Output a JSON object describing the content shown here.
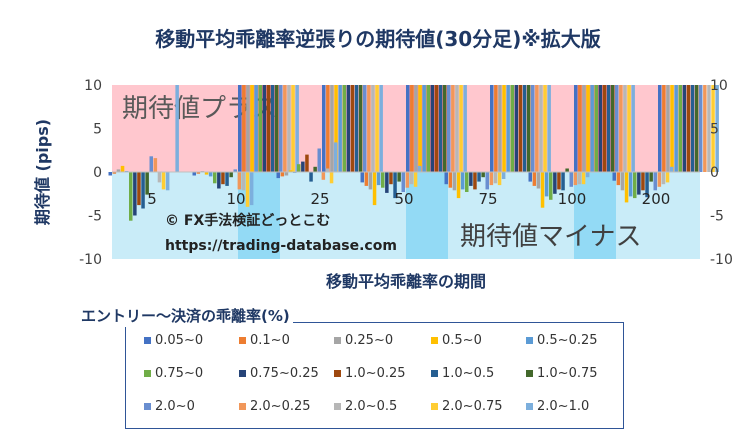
{
  "chart_data": {
    "type": "bar",
    "title": "移動平均乖離率逆張りの期待値(30分足)※拡大版",
    "xlabel": "移動平均乖離率の期間",
    "ylabel": "期待値 (pips)",
    "ylim": [
      -10,
      10
    ],
    "yticks": [
      10,
      5,
      0,
      -5,
      -10
    ],
    "categories": [
      "5",
      "10",
      "25",
      "50",
      "75",
      "100",
      "200"
    ],
    "legend_title": "エントリー～決済の乖離率(%)",
    "colors": [
      "#4472c4",
      "#ed7d31",
      "#a5a5a5",
      "#ffc000",
      "#5b9bd5",
      "#70ad47",
      "#264478",
      "#9e480e",
      "#255e91",
      "#43682b",
      "#698ed0",
      "#f1975a",
      "#b7b7b7",
      "#ffcd33",
      "#7cafdd"
    ],
    "series": [
      {
        "name": "0.05~0",
        "values": [
          -0.4,
          -0.4,
          -0.7,
          -1.2,
          -1.4,
          -1.1,
          -1.0
        ]
      },
      {
        "name": "0.1~0",
        "values": [
          -0.2,
          -0.2,
          -0.5,
          -1.6,
          -1.8,
          -1.6,
          -1.5
        ]
      },
      {
        "name": "0.25~0",
        "values": [
          0.3,
          0.1,
          -0.4,
          -2.0,
          -2.1,
          -1.9,
          -2.1
        ]
      },
      {
        "name": "0.5~0",
        "values": [
          0.7,
          -0.3,
          0.2,
          -3.8,
          -3.0,
          -4.1,
          -3.5
        ]
      },
      {
        "name": "0.5~0.25",
        "values": [
          0.1,
          -0.5,
          -0.1,
          -1.5,
          -2.0,
          -2.8,
          -2.8
        ]
      },
      {
        "name": "0.75~0",
        "values": [
          -5.6,
          -1.3,
          0.9,
          -1.8,
          -2.3,
          -3.2,
          -3.0
        ]
      },
      {
        "name": "0.75~0.25",
        "values": [
          -5.0,
          -1.9,
          1.2,
          -2.4,
          -1.6,
          -2.5,
          -2.6
        ]
      },
      {
        "name": "1.0~0.25",
        "values": [
          -3.8,
          -1.4,
          2.0,
          -1.4,
          -2.0,
          -2.0,
          -2.1
        ]
      },
      {
        "name": "1.0~0.5",
        "values": [
          -4.2,
          -1.6,
          -1.1,
          -3.0,
          -1.1,
          -2.1,
          -2.9
        ]
      },
      {
        "name": "1.0~0.75",
        "values": [
          -2.6,
          -0.6,
          0.6,
          -1.1,
          -0.6,
          0.4,
          -1.1
        ]
      },
      {
        "name": "2.0~0",
        "values": [
          1.8,
          0.3,
          2.7,
          -2.3,
          -2.0,
          -1.7,
          -2.1
        ]
      },
      {
        "name": "2.0~0.25",
        "values": [
          1.6,
          -2.0,
          -0.9,
          -1.8,
          -1.5,
          -1.5,
          -1.7
        ]
      },
      {
        "name": "2.0~0.5",
        "values": [
          -1.2,
          -2.1,
          0.4,
          -1.4,
          -1.3,
          -1.4,
          -1.4
        ]
      },
      {
        "name": "2.0~0.75",
        "values": [
          -2.0,
          -4.0,
          -1.3,
          -1.7,
          -1.5,
          -1.4,
          -1.2
        ]
      },
      {
        "name": "2.0~1.0",
        "values": [
          -2.1,
          -3.8,
          3.4,
          0.7,
          -0.8,
          -0.6,
          0.6
        ]
      }
    ],
    "overflow_series": [
      {
        "category": "5",
        "colors": [
          "#7cafdd"
        ]
      },
      {
        "category": "10",
        "colors": [
          "#4472c4",
          "#ed7d31",
          "#a5a5a5",
          "#ffc000",
          "#5b9bd5",
          "#70ad47",
          "#264478",
          "#9e480e",
          "#255e91",
          "#43682b",
          "#698ed0",
          "#f1975a",
          "#b7b7b7",
          "#ffcd33",
          "#7cafdd"
        ]
      },
      {
        "category": "25",
        "colors": [
          "#4472c4",
          "#ed7d31",
          "#a5a5a5",
          "#ffc000",
          "#5b9bd5",
          "#70ad47",
          "#264478",
          "#9e480e",
          "#255e91",
          "#43682b",
          "#698ed0",
          "#f1975a",
          "#b7b7b7",
          "#ffcd33",
          "#7cafdd"
        ]
      },
      {
        "category": "50",
        "colors": [
          "#4472c4",
          "#ed7d31",
          "#a5a5a5",
          "#ffc000",
          "#5b9bd5",
          "#70ad47",
          "#264478",
          "#9e480e",
          "#255e91",
          "#43682b",
          "#698ed0",
          "#f1975a",
          "#b7b7b7",
          "#ffcd33",
          "#7cafdd"
        ]
      },
      {
        "category": "75",
        "colors": [
          "#4472c4",
          "#ed7d31",
          "#a5a5a5",
          "#ffc000",
          "#5b9bd5",
          "#70ad47",
          "#264478",
          "#9e480e",
          "#255e91",
          "#43682b",
          "#698ed0",
          "#f1975a",
          "#b7b7b7",
          "#ffcd33",
          "#7cafdd"
        ]
      },
      {
        "category": "100",
        "colors": [
          "#4472c4",
          "#ed7d31",
          "#a5a5a5",
          "#ffc000",
          "#5b9bd5",
          "#70ad47",
          "#264478",
          "#9e480e",
          "#255e91",
          "#43682b",
          "#698ed0",
          "#f1975a",
          "#b7b7b7",
          "#ffcd33",
          "#7cafdd"
        ]
      },
      {
        "category": "200",
        "colors": [
          "#4472c4",
          "#ed7d31",
          "#a5a5a5",
          "#ffc000",
          "#5b9bd5",
          "#70ad47",
          "#264478",
          "#9e480e",
          "#255e91",
          "#43682b",
          "#698ed0",
          "#f1975a",
          "#b7b7b7",
          "#ffcd33",
          "#7cafdd"
        ]
      }
    ],
    "annotations": {
      "positive_label": "期待値プラス",
      "negative_label": "期待値マイナス",
      "copyright": "© FX手法検証どっとこむ",
      "url": "https://trading-database.com"
    },
    "zone_colors": {
      "positive_light": "#ffc7ce",
      "positive_dark": "#ff8f99",
      "negative_light": "#c9ecf8",
      "negative_dark": "#93daf5"
    },
    "grid": false,
    "legend_position": "bottom"
  }
}
